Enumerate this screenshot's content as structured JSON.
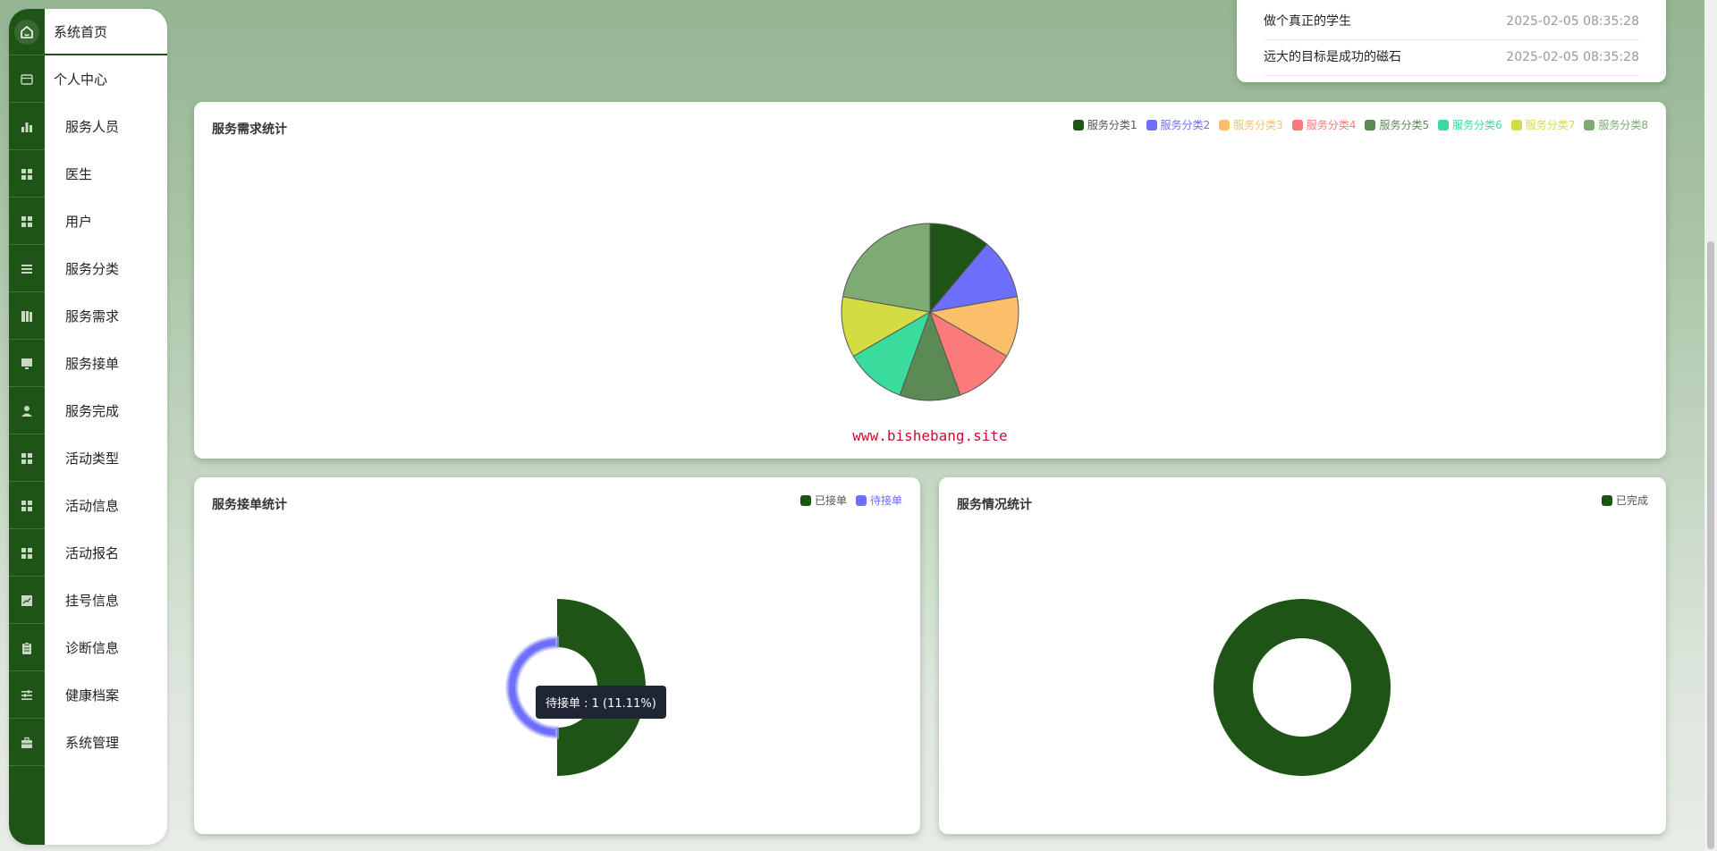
{
  "sidebar": {
    "items": [
      {
        "label": "系统首页",
        "icon": "home-icon",
        "level": "top"
      },
      {
        "label": "个人中心",
        "icon": "card-icon",
        "level": "top"
      },
      {
        "label": "服务人员",
        "icon": "bar-chart-icon",
        "level": "sub"
      },
      {
        "label": "医生",
        "icon": "grid-icon",
        "level": "sub"
      },
      {
        "label": "用户",
        "icon": "grid-icon",
        "level": "sub"
      },
      {
        "label": "服务分类",
        "icon": "list-icon",
        "level": "sub"
      },
      {
        "label": "服务需求",
        "icon": "book-icon",
        "level": "sub"
      },
      {
        "label": "服务接单",
        "icon": "monitor-icon",
        "level": "sub"
      },
      {
        "label": "服务完成",
        "icon": "user-icon",
        "level": "sub"
      },
      {
        "label": "活动类型",
        "icon": "grid-icon",
        "level": "sub"
      },
      {
        "label": "活动信息",
        "icon": "grid-icon",
        "level": "sub"
      },
      {
        "label": "活动报名",
        "icon": "grid-icon",
        "level": "sub"
      },
      {
        "label": "挂号信息",
        "icon": "trend-icon",
        "level": "sub"
      },
      {
        "label": "诊断信息",
        "icon": "clipboard-icon",
        "level": "sub"
      },
      {
        "label": "健康档案",
        "icon": "sliders-icon",
        "level": "sub"
      },
      {
        "label": "系统管理",
        "icon": "briefcase-icon",
        "level": "sub"
      }
    ]
  },
  "notices": [
    {
      "title": "做个真正的学生",
      "date": "2025-02-05 08:35:28"
    },
    {
      "title": "远大的目标是成功的磁石",
      "date": "2025-02-05 08:35:28"
    }
  ],
  "watermark": "www.bishebang.site",
  "tooltip": "待接单 : 1 (11.11%)",
  "colors": {
    "primary": "#1e5416",
    "series": [
      "#1e5416",
      "#6e6efc",
      "#fbbf6a",
      "#fb7a7a",
      "#5c8a55",
      "#3adc9c",
      "#d4dc44",
      "#7eab72"
    ]
  },
  "chart_data": [
    {
      "type": "pie",
      "title": "服务需求统计",
      "categories": [
        "服务分类1",
        "服务分类2",
        "服务分类3",
        "服务分类4",
        "服务分类5",
        "服务分类6",
        "服务分类7",
        "服务分类8"
      ],
      "values": [
        1,
        1,
        1,
        1,
        1,
        1,
        1,
        2
      ],
      "legend": "top-right"
    },
    {
      "type": "pie",
      "title": "服务接单统计",
      "categories": [
        "已接单",
        "待接单"
      ],
      "values": [
        8,
        1
      ],
      "legend": "top-right"
    },
    {
      "type": "pie",
      "title": "服务情况统计",
      "categories": [
        "已完成"
      ],
      "values": [
        1
      ],
      "legend": "top-right"
    }
  ]
}
